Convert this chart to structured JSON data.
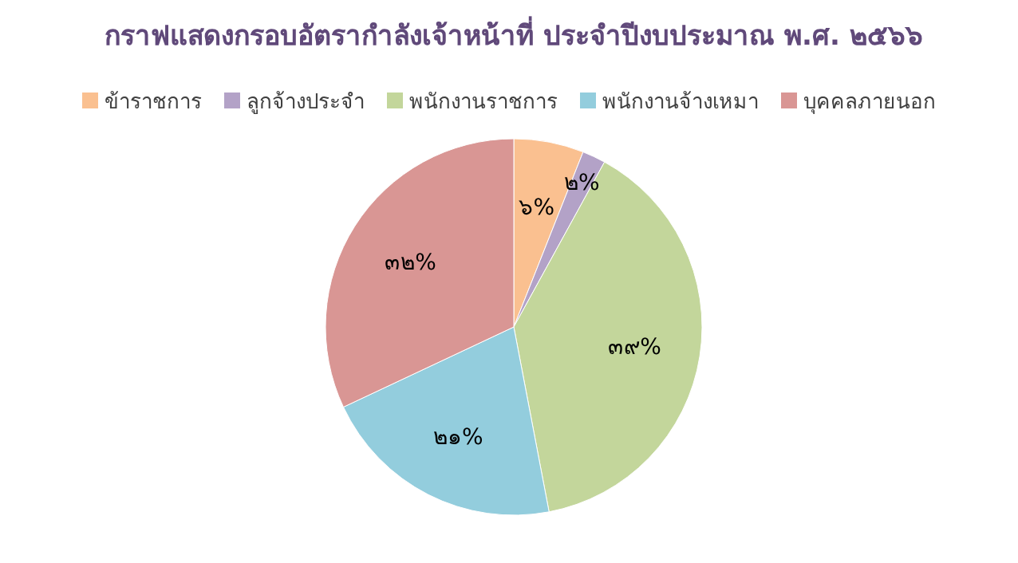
{
  "chart_data": {
    "type": "pie",
    "title": "กราฟแสดงกรอบอัตรากำลังเจ้าหน้าที่ ประจำปีงบประมาณ พ.ศ. ๒๕๖๖",
    "categories": [
      "ข้าราชการ",
      "ลูกจ้างประจำ",
      "พนักงานราชการ",
      "พนักงานจ้างเหมา",
      "บุคคลภายนอก"
    ],
    "values": [
      6,
      2,
      39,
      21,
      32
    ],
    "value_labels": [
      "๖%",
      "๒%",
      "๓๙%",
      "๒๑%",
      "๓๒%"
    ],
    "colors": [
      "#fac090",
      "#b3a2c7",
      "#c3d69b",
      "#93cddd",
      "#d99694"
    ],
    "legend": "top"
  }
}
